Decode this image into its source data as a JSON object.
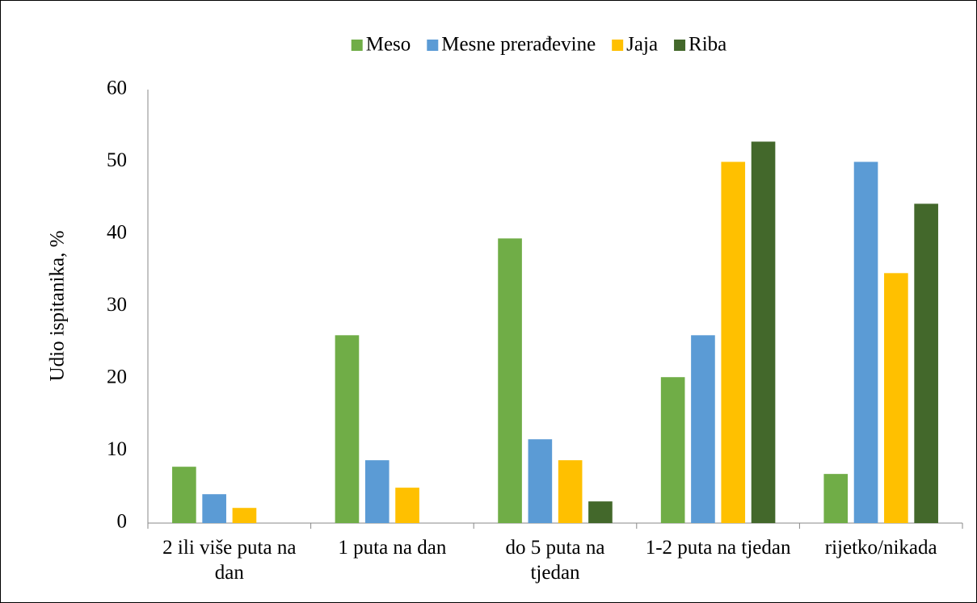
{
  "chart_data": {
    "type": "bar",
    "y_label": "Udio ispitanika, %",
    "categories": [
      "2 ili više puta na dan",
      "1 puta na dan",
      "do 5 puta na tjedan",
      "1-2 puta na tjedan",
      "rijetko/nikada"
    ],
    "series": [
      {
        "name": "Meso",
        "color": "#70ad47",
        "values": [
          7.8,
          26.0,
          39.4,
          20.2,
          6.8
        ]
      },
      {
        "name": "Mesne prerađevine",
        "color": "#5b9bd5",
        "values": [
          4.0,
          8.7,
          11.6,
          26.0,
          50.0
        ]
      },
      {
        "name": "Jaja",
        "color": "#ffc000",
        "values": [
          2.1,
          4.9,
          8.7,
          50.0,
          34.6
        ]
      },
      {
        "name": "Riba",
        "color": "#43682b",
        "values": [
          0,
          0,
          3.0,
          52.8,
          44.2
        ]
      }
    ],
    "ylim": [
      0,
      60
    ],
    "yticks": [
      0,
      10,
      20,
      30,
      40,
      50,
      60
    ],
    "grid": false,
    "legend": "top"
  }
}
